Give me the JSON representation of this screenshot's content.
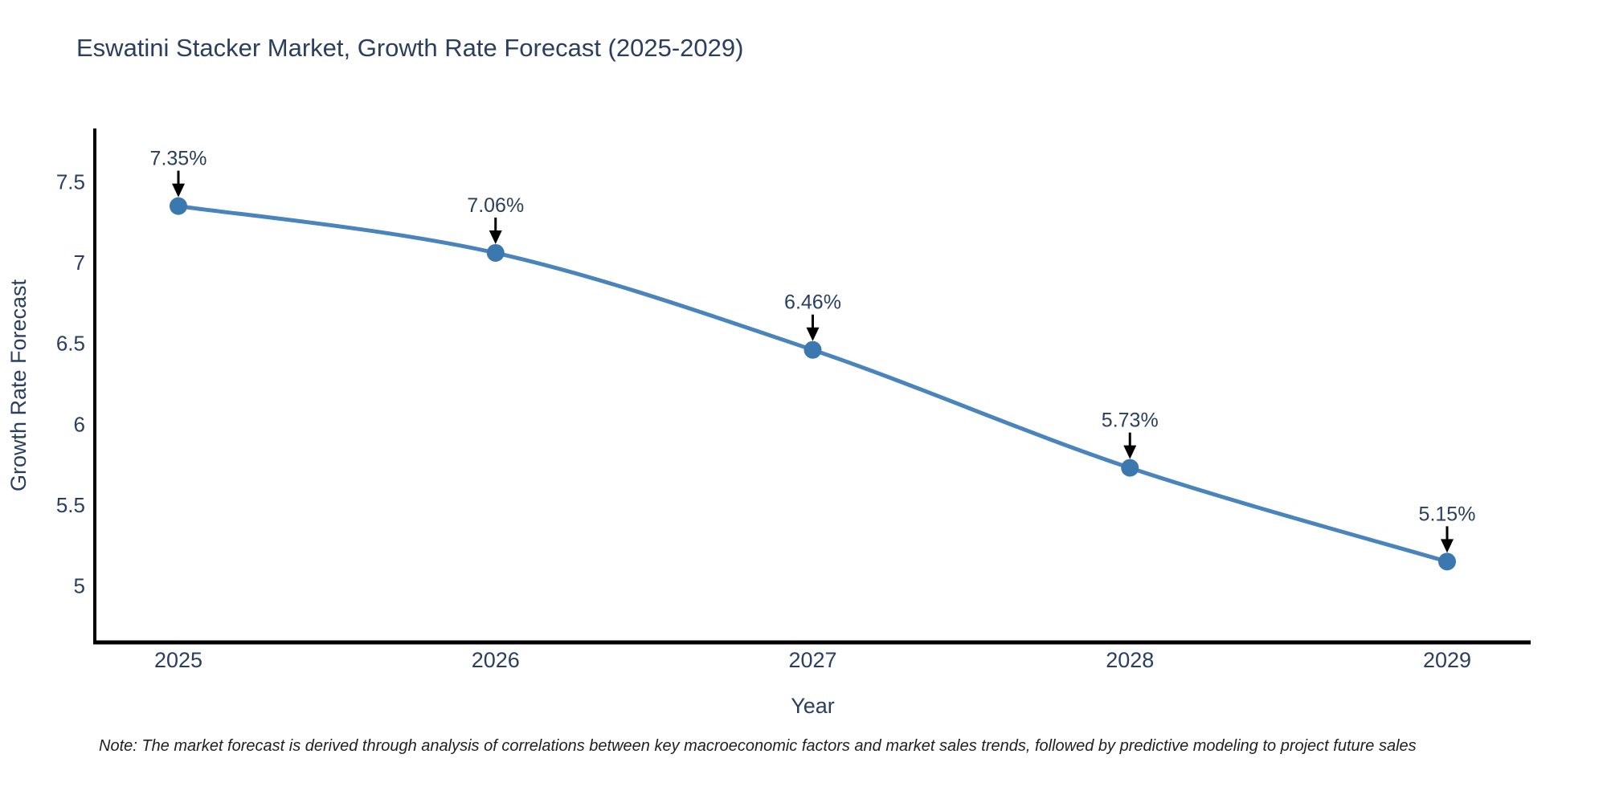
{
  "chart_data": {
    "type": "line",
    "title": "Eswatini Stacker Market, Growth Rate Forecast (2025-2029)",
    "xlabel": "Year",
    "ylabel": "Growth Rate Forecast",
    "x": [
      "2025",
      "2026",
      "2027",
      "2028",
      "2029"
    ],
    "series": [
      {
        "name": "Growth Rate Forecast",
        "values": [
          7.35,
          7.06,
          6.46,
          5.73,
          5.15
        ]
      }
    ],
    "point_labels": [
      "7.35%",
      "7.06%",
      "6.46%",
      "5.73%",
      "5.15%"
    ],
    "ytick_values": [
      5,
      5.5,
      6,
      6.5,
      7,
      7.5
    ],
    "ytick_labels": [
      "5",
      "5.5",
      "6",
      "6.5",
      "7",
      "7.5"
    ],
    "ylim": [
      4.65,
      7.83
    ],
    "grid": false,
    "legend_position": "none",
    "line_shape": "spline",
    "colors": {
      "line": "#4a84bc",
      "marker": "#3c78b0",
      "axis": "#000000",
      "text": "#2a3f5f",
      "annotation_arrow": "#000000"
    }
  },
  "footnote": "Note: The market forecast is derived through analysis of correlations between key macroeconomic factors and market sales trends, followed by predictive modeling to project future sales"
}
